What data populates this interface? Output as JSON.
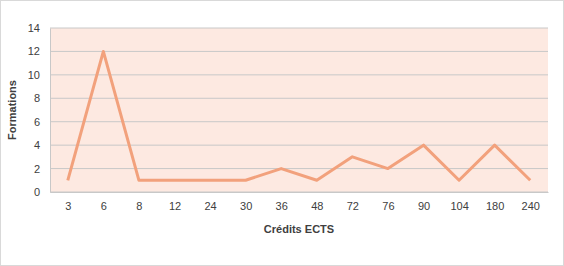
{
  "chart_data": {
    "type": "line",
    "x_label": "Crédits ECTS",
    "y_label": "Formations",
    "categories": [
      "3",
      "6",
      "8",
      "12",
      "24",
      "30",
      "36",
      "48",
      "72",
      "76",
      "90",
      "104",
      "180",
      "240"
    ],
    "values": [
      1,
      12,
      1,
      1,
      1,
      1,
      2,
      1,
      3,
      2,
      4,
      1,
      4,
      1
    ],
    "color": "#f2a17c",
    "ylim": [
      0,
      14
    ],
    "yticks": [
      0,
      2,
      4,
      6,
      8,
      10,
      12,
      14
    ],
    "grid": true
  }
}
